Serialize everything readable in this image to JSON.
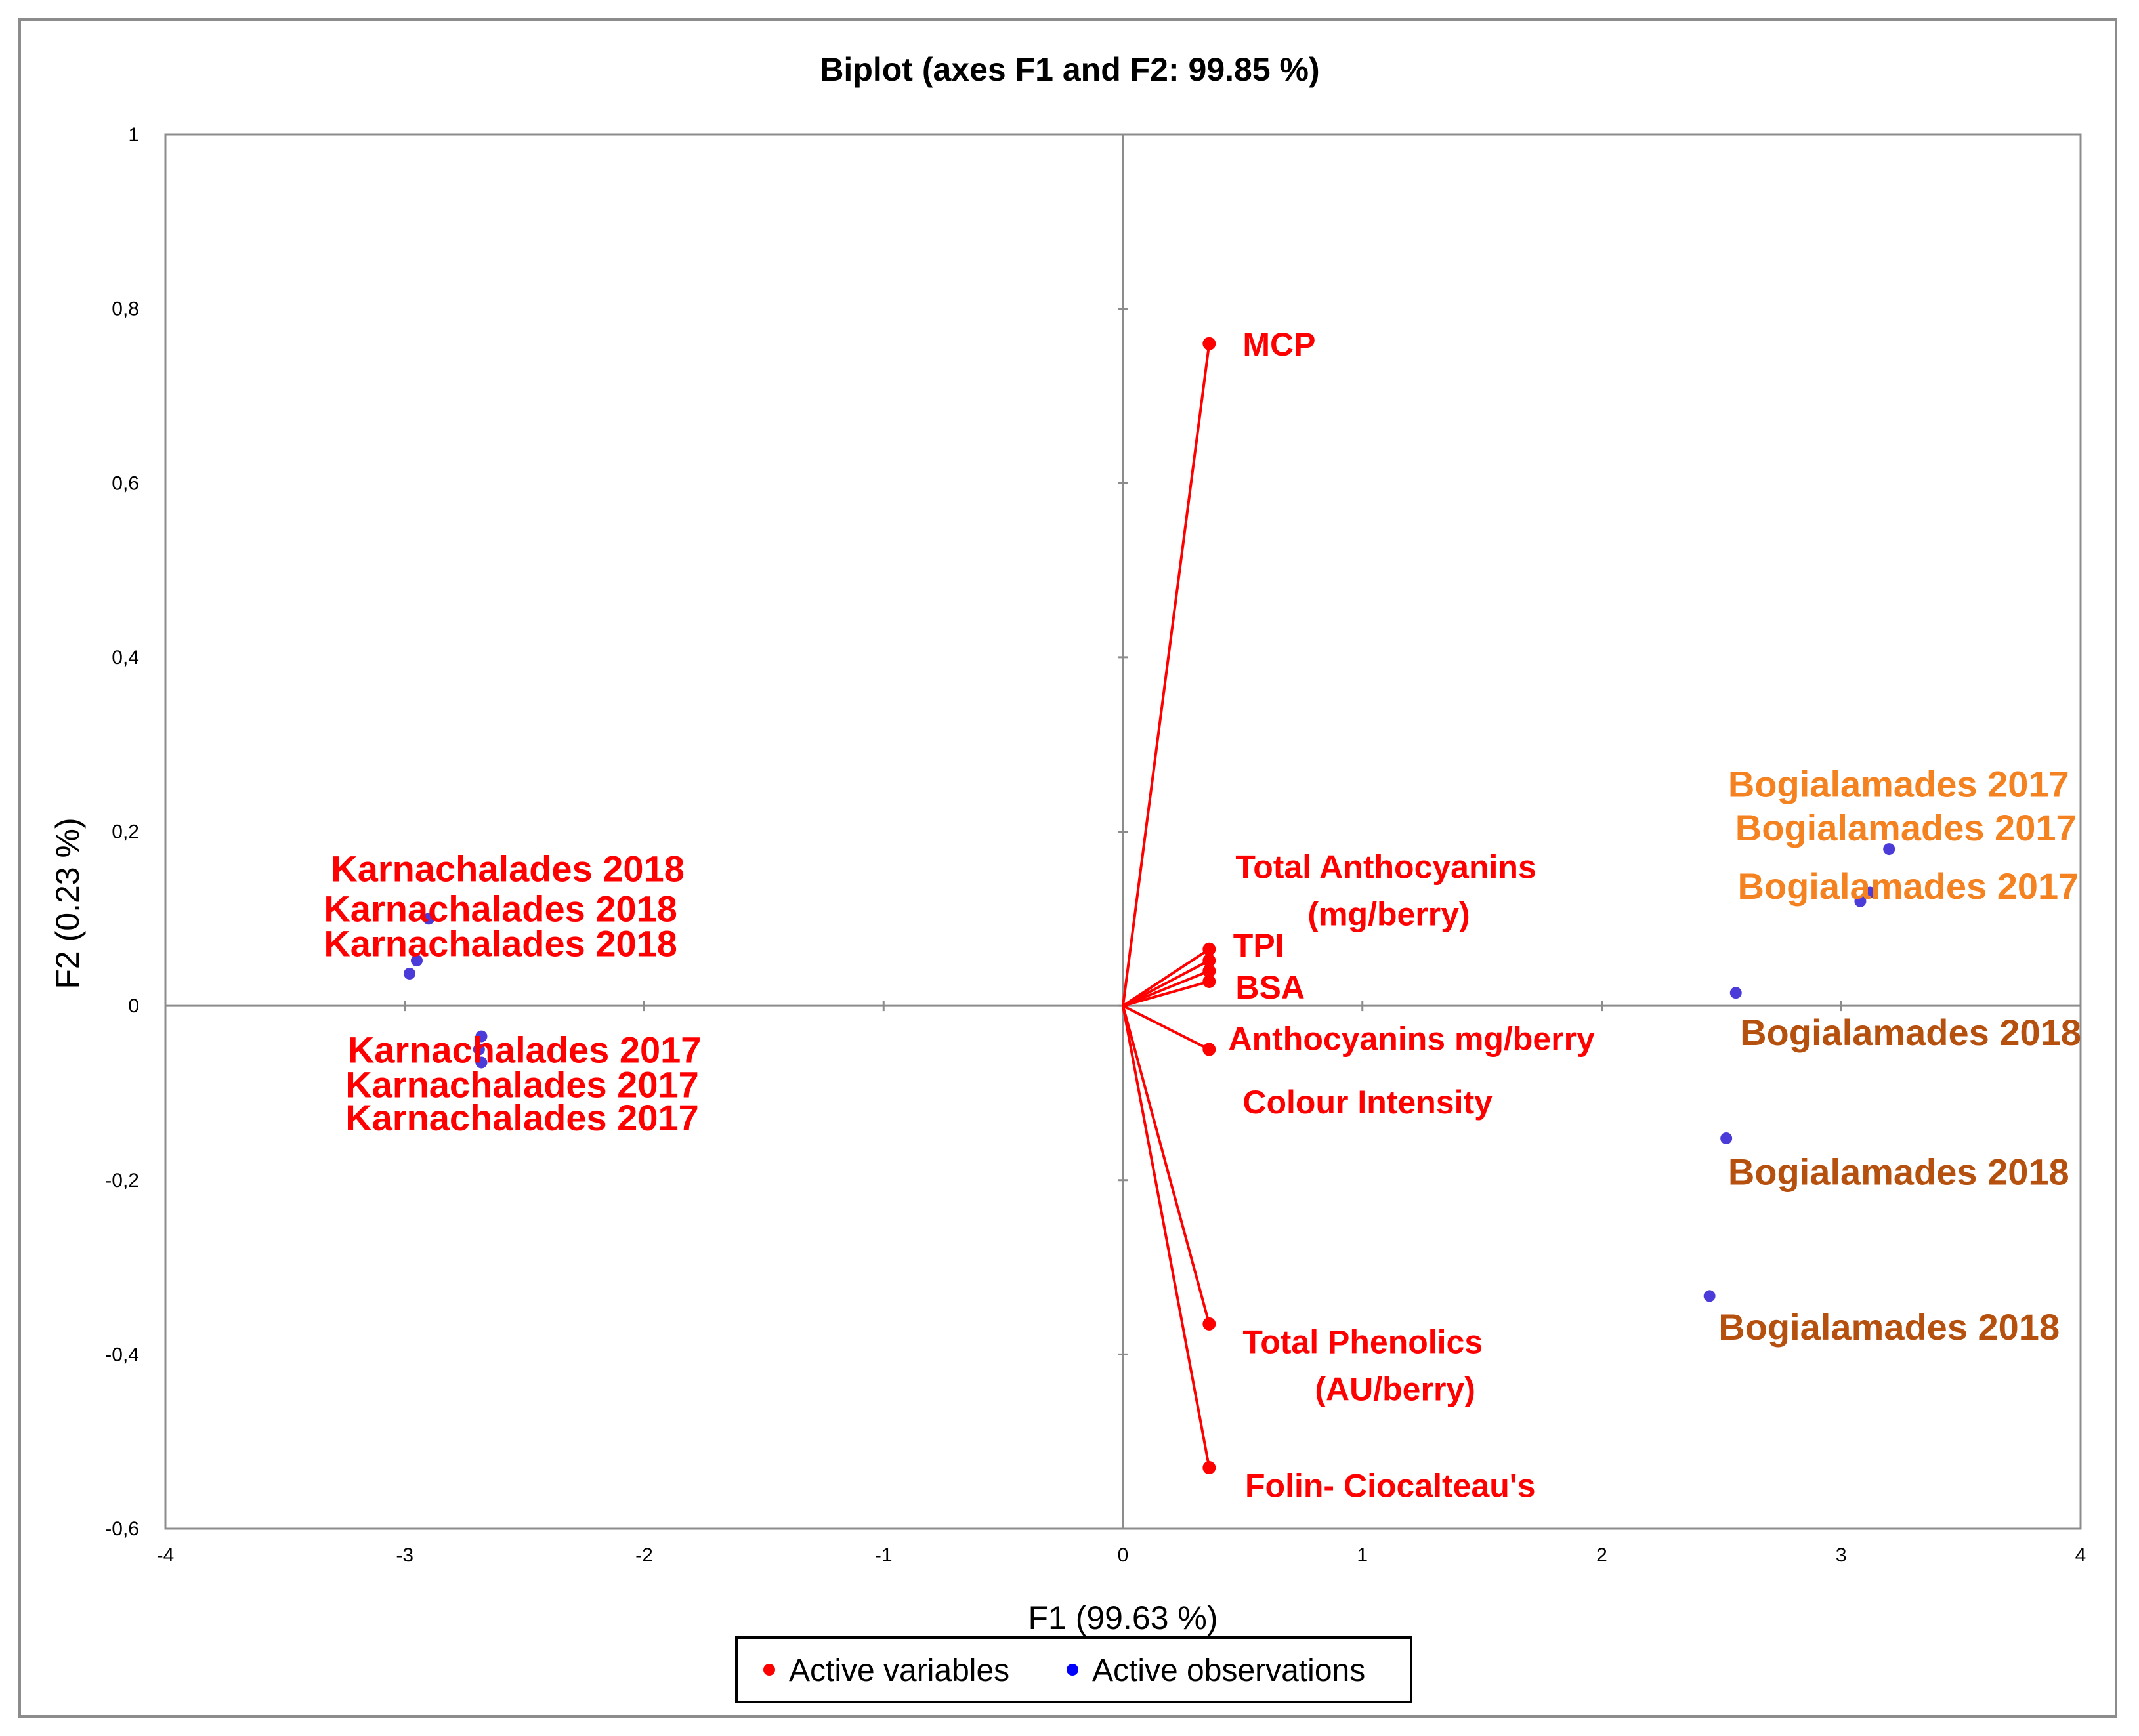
{
  "chart_data": {
    "type": "scatter",
    "title": "Biplot (axes F1 and F2: 99.85 %)",
    "xlabel": "F1 (99.63 %)",
    "ylabel": "F2 (0.23 %)",
    "xlim": [
      -4,
      4
    ],
    "ylim": [
      -0.6,
      1
    ],
    "xticks": [
      -4,
      -3,
      -2,
      -1,
      0,
      1,
      2,
      3,
      4
    ],
    "yticks": [
      -0.6,
      -0.4,
      -0.2,
      0,
      0.2,
      0.4,
      0.6,
      0.8,
      1
    ],
    "ytick_labels": [
      "-0,6",
      "-0,4",
      "-0,2",
      "0",
      "0,2",
      "0,4",
      "0,6",
      "0,8",
      "1"
    ],
    "xtick_labels": [
      "-4",
      "-3",
      "-2",
      "-1",
      "0",
      "1",
      "2",
      "3",
      "4"
    ],
    "legend": {
      "position": "bottom",
      "items": [
        {
          "label": "Active variables",
          "color": "#ff0000"
        },
        {
          "label": "Active observations",
          "color": "#0000ff"
        }
      ]
    },
    "colors": {
      "variable": "#ff0000",
      "observation_marker": "#4b3bd8",
      "karnachalades": "#ff0000",
      "bogialamades_2017": "#f58220",
      "bogialamades_2018": "#b5500e"
    },
    "variables": [
      {
        "name": "MCP",
        "x": 0.36,
        "y": 0.76
      },
      {
        "name": "Total Anthocyanins (mg/berry)",
        "x": 0.36,
        "y": 0.065
      },
      {
        "name": "TPI",
        "x": 0.36,
        "y": 0.052
      },
      {
        "name": "BSA",
        "x": 0.36,
        "y": 0.04
      },
      {
        "name": "Colour Intensity",
        "x": 0.36,
        "y": 0.028
      },
      {
        "name": "Anthocyanins mg/berry",
        "x": 0.36,
        "y": -0.05
      },
      {
        "name": "Total Phenolics (AU/berry)",
        "x": 0.36,
        "y": -0.365
      },
      {
        "name": "Folin- Ciocalteau's",
        "x": 0.36,
        "y": -0.53
      }
    ],
    "variable_labels": [
      {
        "lines": [
          "MCP"
        ],
        "x": 0.5,
        "y": 0.76
      },
      {
        "lines": [
          "Total Anthocyanins",
          "(mg/berry)"
        ],
        "x": 0.47,
        "y": 0.16
      },
      {
        "lines": [
          "TPI"
        ],
        "x": 0.46,
        "y": 0.07
      },
      {
        "lines": [
          "BSA"
        ],
        "x": 0.47,
        "y": 0.022
      },
      {
        "lines": [
          "Anthocyanins mg/berry"
        ],
        "x": 0.44,
        "y": -0.037
      },
      {
        "lines": [
          "Colour Intensity"
        ],
        "x": 0.5,
        "y": -0.11
      },
      {
        "lines": [
          "Total Phenolics",
          "(AU/berry)"
        ],
        "x": 0.5,
        "y": -0.385
      },
      {
        "lines": [
          "Folin- Ciocalteau's"
        ],
        "x": 0.51,
        "y": -0.55
      }
    ],
    "observations": [
      {
        "name": "Karnachalades 2018",
        "x": -2.9,
        "y": 0.1,
        "group": "karnachalades"
      },
      {
        "name": "Karnachalades 2018",
        "x": -2.95,
        "y": 0.052,
        "group": "karnachalades"
      },
      {
        "name": "Karnachalades 2018",
        "x": -2.98,
        "y": 0.037,
        "group": "karnachalades"
      },
      {
        "name": "Karnachalades 2017",
        "x": -2.68,
        "y": -0.035,
        "group": "karnachalades"
      },
      {
        "name": "Karnachalades 2017",
        "x": -2.69,
        "y": -0.05,
        "group": "karnachalades"
      },
      {
        "name": "Karnachalades 2017",
        "x": -2.68,
        "y": -0.065,
        "group": "karnachalades"
      },
      {
        "name": "Bogialamades 2017",
        "x": 3.2,
        "y": 0.18,
        "group": "bogialamades_2017"
      },
      {
        "name": "Bogialamades 2017",
        "x": 3.12,
        "y": 0.13,
        "group": "bogialamades_2017"
      },
      {
        "name": "Bogialamades 2017",
        "x": 3.08,
        "y": 0.12,
        "group": "bogialamades_2017"
      },
      {
        "name": "Bogialamades 2018",
        "x": 2.56,
        "y": 0.015,
        "group": "bogialamades_2018"
      },
      {
        "name": "Bogialamades 2018",
        "x": 2.52,
        "y": -0.152,
        "group": "bogialamades_2018"
      },
      {
        "name": "Bogialamades 2018",
        "x": 2.45,
        "y": -0.333,
        "group": "bogialamades_2018"
      }
    ],
    "observation_labels": [
      {
        "text": "Karnachalades 2018",
        "x": -2.57,
        "y": 0.158,
        "group": "karnachalades"
      },
      {
        "text": "Karnachalades 2018",
        "x": -2.6,
        "y": 0.112,
        "group": "karnachalades"
      },
      {
        "text": "Karnachalades 2018",
        "x": -2.6,
        "y": 0.072,
        "group": "karnachalades"
      },
      {
        "text": "Karnachalades 2017",
        "x": -2.5,
        "y": -0.05,
        "group": "karnachalades"
      },
      {
        "text": "Karnachalades 2017",
        "x": -2.51,
        "y": -0.09,
        "group": "karnachalades"
      },
      {
        "text": "Karnachalades 2017",
        "x": -2.51,
        "y": -0.128,
        "group": "karnachalades"
      },
      {
        "text": "Bogialamades 2017",
        "x": 3.24,
        "y": 0.255,
        "group": "bogialamades_2017"
      },
      {
        "text": "Bogialamades 2017",
        "x": 3.27,
        "y": 0.205,
        "group": "bogialamades_2017"
      },
      {
        "text": "Bogialamades 2017",
        "x": 3.28,
        "y": 0.138,
        "group": "bogialamades_2017"
      },
      {
        "text": "Bogialamades 2018",
        "x": 3.29,
        "y": -0.03,
        "group": "bogialamades_2018"
      },
      {
        "text": "Bogialamades 2018",
        "x": 3.24,
        "y": -0.19,
        "group": "bogialamades_2018"
      },
      {
        "text": "Bogialamades 2018",
        "x": 3.2,
        "y": -0.368,
        "group": "bogialamades_2018"
      }
    ]
  }
}
